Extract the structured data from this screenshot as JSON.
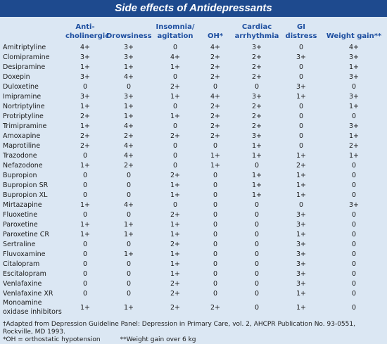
{
  "title": "Side effects of Antidepressants",
  "table": {
    "columns": [
      "Anti-cholinergic",
      "Drowsiness",
      "Insomnia/ agitation",
      "OH*",
      "Cardiac arrhythmia",
      "GI distress",
      "Weight gain**"
    ],
    "rows": [
      [
        "Amitriptyline",
        "4+",
        "3+",
        "0",
        "4+",
        "3+",
        "0",
        "4+"
      ],
      [
        "Clomipramine",
        "3+",
        "3+",
        "4+",
        "2+",
        "2+",
        "3+",
        "3+"
      ],
      [
        "Desipramine",
        "1+",
        "1+",
        "1+",
        "2+",
        "2+",
        "0",
        "1+"
      ],
      [
        "Doxepin",
        "3+",
        "4+",
        "0",
        "2+",
        "2+",
        "0",
        "3+"
      ],
      [
        "Duloxetine",
        "0",
        "0",
        "2+",
        "0",
        "0",
        "3+",
        "0"
      ],
      [
        "Imipramine",
        "3+",
        "3+",
        "1+",
        "4+",
        "3+",
        "1+",
        "3+"
      ],
      [
        "Nortriptyline",
        "1+",
        "1+",
        "0",
        "2+",
        "2+",
        "0",
        "1+"
      ],
      [
        "Protriptyline",
        "2+",
        "1+",
        "1+",
        "2+",
        "2+",
        "0",
        "0"
      ],
      [
        "Trimipramine",
        "1+",
        "4+",
        "0",
        "2+",
        "2+",
        "0",
        "3+"
      ],
      [
        "Amoxapine",
        "2+",
        "2+",
        "2+",
        "2+",
        "3+",
        "0",
        "1+"
      ],
      [
        "Maprotiline",
        "2+",
        "4+",
        "0",
        "0",
        "1+",
        "0",
        "2+"
      ],
      [
        "Trazodone",
        "0",
        "4+",
        "0",
        "1+",
        "1+",
        "1+",
        "1+"
      ],
      [
        "Nefazodone",
        "1+",
        "2+",
        "0",
        "1+",
        "0",
        "2+",
        "0"
      ],
      [
        "Bupropion",
        "0",
        "0",
        "2+",
        "0",
        "1+",
        "1+",
        "0"
      ],
      [
        "Bupropion SR",
        "0",
        "0",
        "1+",
        "0",
        "1+",
        "1+",
        "0"
      ],
      [
        "Bupropion XL",
        "0",
        "0",
        "1+",
        "0",
        "1+",
        "1+",
        "0"
      ],
      [
        "Mirtazapine",
        "1+",
        "4+",
        "0",
        "0",
        "0",
        "0",
        "3+"
      ],
      [
        "Fluoxetine",
        "0",
        "0",
        "2+",
        "0",
        "0",
        "3+",
        "0"
      ],
      [
        "Paroxetine",
        "1+",
        "1+",
        "1+",
        "0",
        "0",
        "3+",
        "0"
      ],
      [
        "Paroxetine CR",
        "1+",
        "1+",
        "1+",
        "0",
        "0",
        "1+",
        "0"
      ],
      [
        "Sertraline",
        "0",
        "0",
        "2+",
        "0",
        "0",
        "3+",
        "0"
      ],
      [
        "Fluvoxamine",
        "0",
        "1+",
        "1+",
        "0",
        "0",
        "3+",
        "0"
      ],
      [
        "Citalopram",
        "0",
        "0",
        "1+",
        "0",
        "0",
        "3+",
        "0"
      ],
      [
        "Escitalopram",
        "0",
        "0",
        "1+",
        "0",
        "0",
        "3+",
        "0"
      ],
      [
        "Venlafaxine",
        "0",
        "0",
        "2+",
        "0",
        "0",
        "3+",
        "0"
      ],
      [
        "Venlafaxine XR",
        "0",
        "0",
        "2+",
        "0",
        "0",
        "1+",
        "0"
      ],
      [
        "Monoamine oxidase inhibitors",
        "1+",
        "1+",
        "2+",
        "2+",
        "0",
        "1+",
        "0"
      ]
    ]
  },
  "footnotes": {
    "source": "†Adapted from Depression Guideline Panel: Depression in Primary Care, vol. 2, AHCPR Publication No. 93-0551, Rockville, MD 1993.",
    "oh": "*OH = orthostatic hypotension",
    "weight": "**Weight gain over 6 kg"
  }
}
